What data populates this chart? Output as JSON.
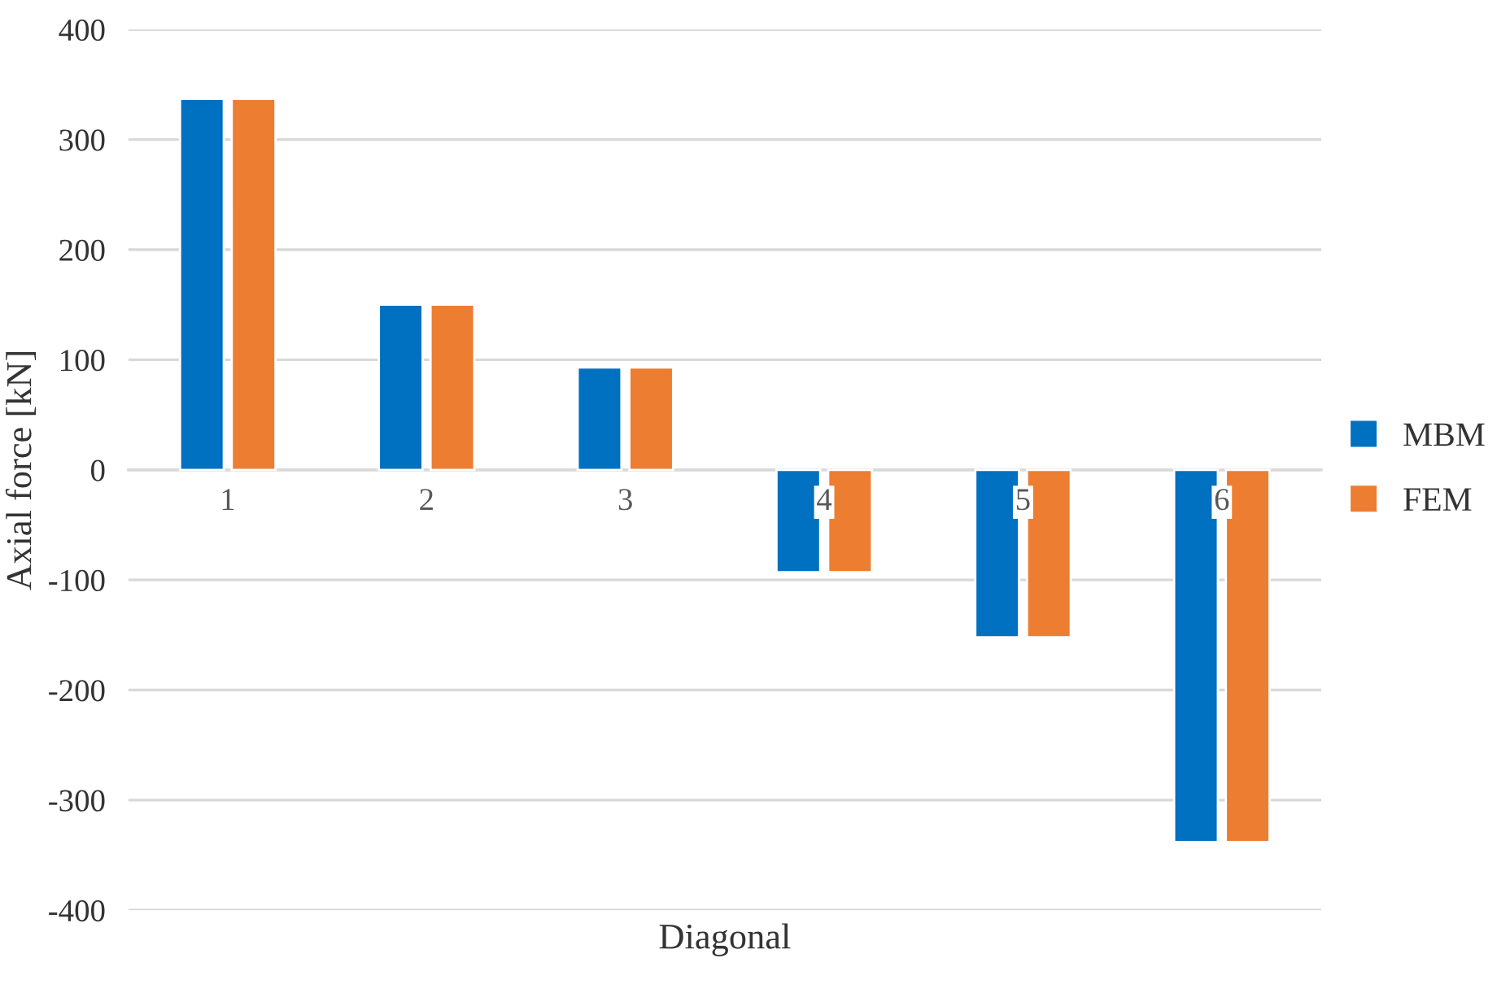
{
  "chart_data": {
    "type": "bar",
    "xlabel": "Diagonal",
    "ylabel": "Axial force [kN]",
    "categories": [
      "1",
      "2",
      "3",
      "4",
      "5",
      "6"
    ],
    "series": [
      {
        "name": "MBM",
        "color": "#0070c0",
        "values": [
          337,
          150,
          93,
          -93,
          -152,
          -338
        ]
      },
      {
        "name": "FEM",
        "color": "#ed7d31",
        "values": [
          337,
          150,
          93,
          -93,
          -152,
          -338
        ]
      }
    ],
    "ylim": [
      -400,
      400
    ],
    "yticks": [
      -400,
      -300,
      -200,
      -100,
      0,
      100,
      200,
      300,
      400
    ],
    "grid": "y",
    "legend": "right"
  }
}
